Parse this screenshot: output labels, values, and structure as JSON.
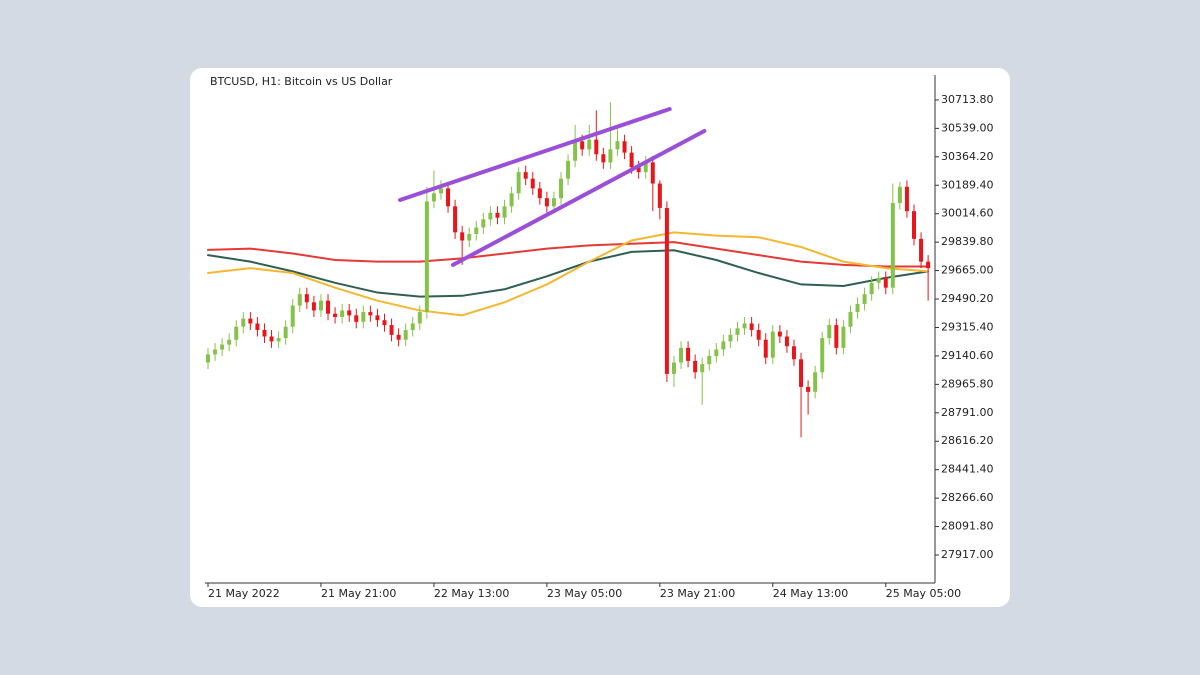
{
  "chart_data": {
    "type": "candlestick",
    "title": "BTCUSD, H1:  Bitcoin vs US Dollar",
    "categories": [
      "21 May 2022",
      null,
      null,
      null,
      null,
      null,
      null,
      null,
      null,
      null,
      null,
      null,
      null,
      null,
      null,
      null,
      "21 May 21:00",
      null,
      null,
      null,
      null,
      null,
      null,
      null,
      null,
      null,
      null,
      null,
      null,
      null,
      null,
      null,
      "22 May 13:00",
      null,
      null,
      null,
      null,
      null,
      null,
      null,
      null,
      null,
      null,
      null,
      null,
      null,
      null,
      null,
      "23 May 05:00",
      null,
      null,
      null,
      null,
      null,
      null,
      null,
      null,
      null,
      null,
      null,
      null,
      null,
      null,
      null,
      "23 May 21:00",
      null,
      null,
      null,
      null,
      null,
      null,
      null,
      null,
      null,
      null,
      null,
      null,
      null,
      null,
      null,
      "24 May 13:00",
      null,
      null,
      null,
      null,
      null,
      null,
      null,
      null,
      null,
      null,
      null,
      null,
      null,
      null,
      null,
      "25 May 05:00",
      null,
      null,
      null,
      null,
      null,
      null
    ],
    "open": [
      29100,
      29150,
      29180,
      29210,
      29240,
      29320,
      29370,
      29340,
      29300,
      29260,
      29230,
      29250,
      29320,
      29450,
      29520,
      29470,
      29420,
      29480,
      29400,
      29380,
      29420,
      29390,
      29350,
      29410,
      29390,
      29360,
      29330,
      29270,
      29240,
      29300,
      29340,
      29410,
      30090,
      30140,
      30170,
      30060,
      29900,
      29850,
      29890,
      29930,
      29980,
      30020,
      29990,
      30060,
      30140,
      30270,
      30230,
      30170,
      30110,
      30060,
      30110,
      30230,
      30340,
      30460,
      30410,
      30470,
      30380,
      30330,
      30410,
      30460,
      30390,
      30300,
      30270,
      30330,
      30200,
      30050,
      29030,
      29100,
      29190,
      29110,
      29040,
      29090,
      29140,
      29180,
      29230,
      29270,
      29310,
      29340,
      29300,
      29240,
      29130,
      29290,
      29260,
      29200,
      29120,
      28950,
      28920,
      29040,
      29250,
      29330,
      29190,
      29320,
      29410,
      29460,
      29520,
      29590,
      29620,
      29560,
      30080,
      30180,
      30030,
      29860,
      29720
    ],
    "high": [
      29190,
      29220,
      29250,
      29280,
      29360,
      29410,
      29410,
      29380,
      29340,
      29300,
      29290,
      29360,
      29490,
      29560,
      29560,
      29510,
      29520,
      29520,
      29440,
      29460,
      29460,
      29430,
      29450,
      29450,
      29430,
      29400,
      29370,
      29310,
      29340,
      29380,
      29450,
      30180,
      30280,
      30220,
      30210,
      30100,
      29940,
      29930,
      29970,
      30020,
      30060,
      30060,
      30100,
      30180,
      30300,
      30310,
      30270,
      30210,
      30150,
      30150,
      30270,
      30380,
      30560,
      30500,
      30560,
      30650,
      30420,
      30700,
      30560,
      30500,
      30430,
      30340,
      30370,
      30370,
      30220,
      30090,
      29140,
      29230,
      29230,
      29150,
      29130,
      29180,
      29220,
      29270,
      29310,
      29350,
      29380,
      29380,
      29340,
      29280,
      29330,
      29330,
      29300,
      29240,
      29160,
      28990,
      29080,
      29290,
      29370,
      29370,
      29360,
      29450,
      29500,
      29560,
      29630,
      29660,
      29660,
      30200,
      30210,
      30220,
      30070,
      29900,
      29760
    ],
    "low": [
      29060,
      29110,
      29140,
      29170,
      29200,
      29280,
      29300,
      29260,
      29220,
      29190,
      29190,
      29210,
      29280,
      29410,
      29430,
      29380,
      29380,
      29360,
      29340,
      29340,
      29350,
      29310,
      29310,
      29350,
      29320,
      29290,
      29230,
      29200,
      29200,
      29260,
      29300,
      29370,
      30050,
      30100,
      30020,
      29860,
      29700,
      29810,
      29850,
      29890,
      29940,
      29950,
      29950,
      30020,
      30100,
      30190,
      30130,
      30070,
      30020,
      30020,
      30070,
      30190,
      30300,
      30370,
      30370,
      30340,
      30290,
      30290,
      30370,
      30350,
      30260,
      30230,
      30230,
      30030,
      29980,
      28980,
      28950,
      29060,
      29070,
      29000,
      28840,
      29050,
      29100,
      29140,
      29190,
      29230,
      29270,
      29260,
      29200,
      29090,
      29090,
      29220,
      29160,
      29080,
      28640,
      28780,
      28880,
      29000,
      29210,
      29150,
      29150,
      29280,
      29370,
      29420,
      29480,
      29550,
      29520,
      29520,
      30040,
      29990,
      29820,
      29680,
      29480
    ],
    "close": [
      29150,
      29180,
      29210,
      29240,
      29320,
      29370,
      29340,
      29300,
      29260,
      29230,
      29250,
      29320,
      29450,
      29520,
      29470,
      29420,
      29480,
      29400,
      29380,
      29420,
      29390,
      29350,
      29410,
      29390,
      29360,
      29330,
      29270,
      29240,
      29300,
      29340,
      29410,
      30090,
      30140,
      30170,
      30060,
      29900,
      29850,
      29890,
      29930,
      29980,
      30020,
      29990,
      30060,
      30140,
      30270,
      30230,
      30170,
      30110,
      30060,
      30110,
      30230,
      30340,
      30460,
      30410,
      30470,
      30380,
      30330,
      30410,
      30460,
      30390,
      30300,
      30270,
      30330,
      30200,
      30050,
      29030,
      29100,
      29190,
      29110,
      29040,
      29090,
      29140,
      29180,
      29230,
      29270,
      29310,
      29340,
      29300,
      29240,
      29130,
      29290,
      29260,
      29200,
      29120,
      28950,
      28920,
      29040,
      29250,
      29330,
      29190,
      29320,
      29410,
      29460,
      29520,
      29590,
      29620,
      29560,
      30080,
      30180,
      30030,
      29860,
      29720,
      29680
    ],
    "up_color": "#86c24a",
    "down_color": "#e8161b",
    "lines": [
      {
        "color": "#e53935",
        "x": [
          0,
          6,
          12,
          18,
          24,
          30,
          36,
          42,
          48,
          54,
          60,
          66,
          72,
          78,
          84,
          90,
          96,
          102
        ],
        "values": [
          29792,
          29800,
          29770,
          29730,
          29720,
          29720,
          29740,
          29770,
          29800,
          29820,
          29830,
          29840,
          29800,
          29760,
          29720,
          29700,
          29690,
          29690
        ]
      },
      {
        "color": "#2f5f52",
        "x": [
          0,
          6,
          12,
          18,
          24,
          30,
          36,
          42,
          48,
          54,
          60,
          66,
          72,
          78,
          84,
          90,
          96,
          102
        ],
        "values": [
          29760,
          29720,
          29660,
          29590,
          29530,
          29505,
          29510,
          29550,
          29630,
          29720,
          29780,
          29790,
          29730,
          29650,
          29580,
          29570,
          29620,
          29660
        ]
      },
      {
        "color": "#f4b731",
        "x": [
          0,
          6,
          12,
          18,
          24,
          30,
          36,
          42,
          48,
          54,
          60,
          66,
          72,
          78,
          84,
          90,
          96,
          102
        ],
        "values": [
          29650,
          29680,
          29650,
          29560,
          29480,
          29420,
          29390,
          29470,
          29580,
          29720,
          29850,
          29900,
          29880,
          29870,
          29810,
          29720,
          29680,
          29660
        ]
      }
    ],
    "trendlines": [
      {
        "color": "#9b4fd9",
        "x": [
          27.2,
          65.4
        ],
        "values": [
          30099,
          30658
        ]
      },
      {
        "color": "#9b4fd9",
        "x": [
          34.7,
          70.3
        ],
        "values": [
          29700,
          30523
        ]
      }
    ],
    "ylim": [
      27745,
      30867
    ],
    "yticks": [
      {
        "value": 30713.8,
        "label": "30713.80"
      },
      {
        "value": 30539,
        "label": "30539.00"
      },
      {
        "value": 30364.2,
        "label": "30364.20"
      },
      {
        "value": 30189.4,
        "label": "30189.40"
      },
      {
        "value": 30014.6,
        "label": "30014.60"
      },
      {
        "value": 29839.8,
        "label": "29839.80"
      },
      {
        "value": 29665,
        "label": "29665.00"
      },
      {
        "value": 29490.2,
        "label": "29490.20"
      },
      {
        "value": 29315.4,
        "label": "29315.40"
      },
      {
        "value": 29140.6,
        "label": "29140.60"
      },
      {
        "value": 28965.8,
        "label": "28965.80"
      },
      {
        "value": 28791,
        "label": "28791.00"
      },
      {
        "value": 28616.2,
        "label": "28616.20"
      },
      {
        "value": 28441.4,
        "label": "28441.40"
      },
      {
        "value": 28266.6,
        "label": "28266.60"
      },
      {
        "value": 28091.8,
        "label": "28091.80"
      },
      {
        "value": 27917,
        "label": "27917.00"
      }
    ]
  }
}
